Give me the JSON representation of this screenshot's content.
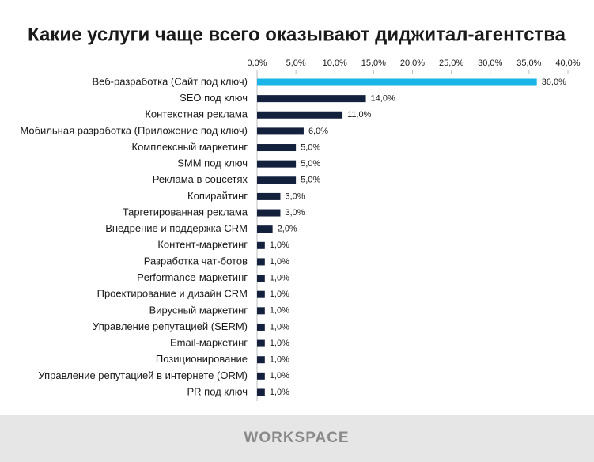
{
  "chart_data": {
    "type": "barh",
    "title": "Какие услуги чаще всего оказывают диджитал-агентства",
    "categories": [
      "Веб-разработка (Сайт под ключ)",
      "SEO под ключ",
      "Контекстная реклама",
      "Мобильная разработка (Приложение под ключ)",
      "Комплексный маркетинг",
      "SMM под ключ",
      "Реклама в соцсетях",
      "Копирайтинг",
      "Таргетированная реклама",
      "Внедрение и поддержка CRM",
      "Контент-маркетинг",
      "Разработка чат-ботов",
      "Performance-маркетинг",
      "Проектирование и дизайн CRM",
      "Вирусный маркетинг",
      "Управление репутацией (SERM)",
      "Email-маркетинг",
      "Позиционирование",
      "Управление репутацией в интернете (ORM)",
      "PR под ключ"
    ],
    "values": [
      36,
      14,
      11,
      6,
      5,
      5,
      5,
      3,
      3,
      2,
      1,
      1,
      1,
      1,
      1,
      1,
      1,
      1,
      1,
      1
    ],
    "value_labels": [
      "36,0%",
      "14,0%",
      "11,0%",
      "6,0%",
      "5,0%",
      "5,0%",
      "5,0%",
      "3,0%",
      "3,0%",
      "2,0%",
      "1,0%",
      "1,0%",
      "1,0%",
      "1,0%",
      "1,0%",
      "1,0%",
      "1,0%",
      "1,0%",
      "1,0%",
      "1,0%"
    ],
    "colors": [
      "#1ab4e6",
      "#14213d",
      "#14213d",
      "#14213d",
      "#14213d",
      "#14213d",
      "#14213d",
      "#14213d",
      "#14213d",
      "#14213d",
      "#14213d",
      "#14213d",
      "#14213d",
      "#14213d",
      "#14213d",
      "#14213d",
      "#14213d",
      "#14213d",
      "#14213d",
      "#14213d"
    ],
    "xlim": [
      0,
      40
    ],
    "xticks": [
      {
        "value": 0,
        "label": "0,0%"
      },
      {
        "value": 5,
        "label": "5,0%"
      },
      {
        "value": 10,
        "label": "10,0%"
      },
      {
        "value": 15,
        "label": "15,0%"
      },
      {
        "value": 20,
        "label": "20,0%"
      },
      {
        "value": 25,
        "label": "25,0%"
      },
      {
        "value": 30,
        "label": "30,0%"
      },
      {
        "value": 35,
        "label": "35,0%"
      },
      {
        "value": 40,
        "label": "40,0%"
      }
    ],
    "xaxis_position": "top",
    "grid": false
  },
  "footer": "WORKSPACE"
}
